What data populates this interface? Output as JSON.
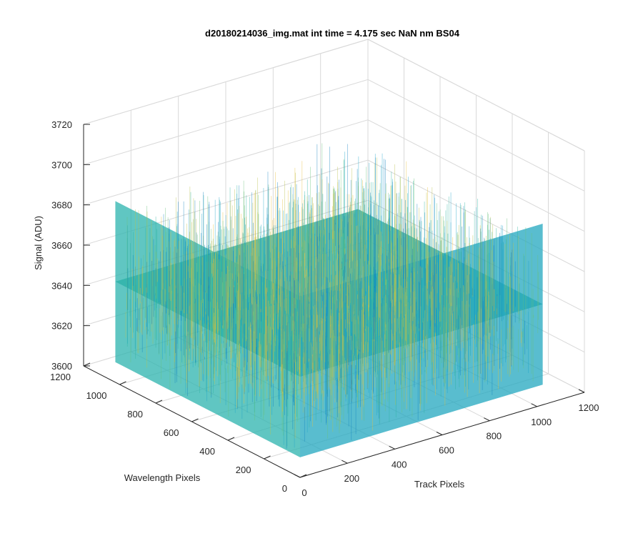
{
  "chart_data": {
    "type": "surface3d",
    "title": "d20180214036_img.mat int time = 4.175 sec  NaN nm BS04",
    "xlabel": "Track Pixels",
    "ylabel": "Wavelength Pixels",
    "zlabel": "Signal (ADU)",
    "x_ticks": [
      "0",
      "200",
      "400",
      "600",
      "800",
      "1000",
      "1200"
    ],
    "y_ticks": [
      "0",
      "200",
      "400",
      "600",
      "800",
      "1000",
      "1200"
    ],
    "z_ticks": [
      "3600",
      "3620",
      "3640",
      "3660",
      "3680",
      "3700",
      "3720"
    ],
    "xlim": [
      0,
      1200
    ],
    "ylim": [
      0,
      1200
    ],
    "zlim": [
      3600,
      3720
    ],
    "surface": {
      "x_extent": [
        0,
        1024
      ],
      "y_extent": [
        0,
        1024
      ],
      "mean_signal": 3650,
      "noise_range": [
        3610,
        3700
      ],
      "colormap": "parula",
      "colors": [
        "#0d7fbf",
        "#1aa3c8",
        "#2ab3a0",
        "#68c17a",
        "#b9c04a",
        "#e8bf3a"
      ]
    },
    "grid": true,
    "box_color": "#262626",
    "grid_color": "#d9d9d9"
  }
}
